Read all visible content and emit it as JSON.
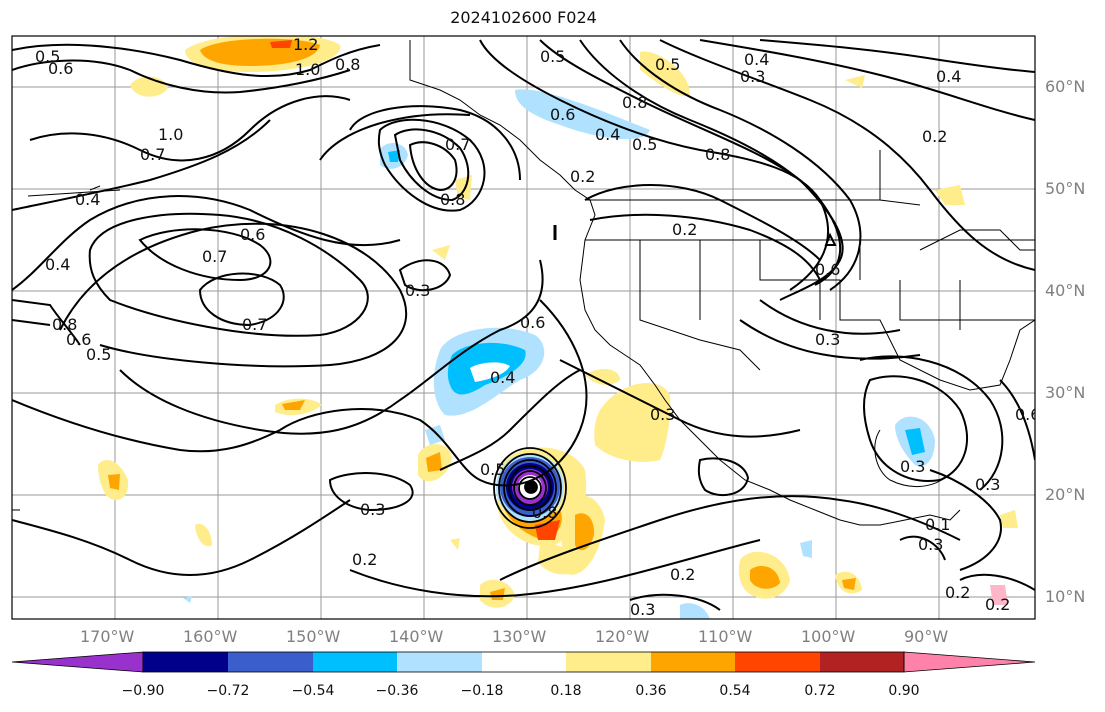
{
  "title": "2024102600 F024",
  "lat_labels": [
    "60°N",
    "50°N",
    "40°N",
    "30°N",
    "20°N",
    "10°N"
  ],
  "lon_labels": [
    "170°W",
    "160°W",
    "150°W",
    "140°W",
    "130°W",
    "120°W",
    "110°W",
    "100°W",
    "90°W"
  ],
  "colorbar": {
    "ticks": [
      "−0.90",
      "−0.72",
      "−0.54",
      "−0.36",
      "−0.18",
      "0.18",
      "0.36",
      "0.54",
      "0.72",
      "0.90"
    ],
    "colors": [
      "#9932cc",
      "#00008b",
      "#3a5fcd",
      "#00bfff",
      "#b0e2ff",
      "#ffffff",
      "#ffec8b",
      "#ffa500",
      "#ff4500",
      "#b22222",
      "#ff82ab"
    ]
  },
  "contour_labels": [
    "0.5",
    "0.6",
    "1.2",
    "1.0",
    "0.8",
    "1.0",
    "0.7",
    "0.4",
    "0.7",
    "0.6",
    "0.7",
    "0.8",
    "0.7",
    "0.4",
    "0.3",
    "0.8",
    "0.6",
    "0.5",
    "0.5",
    "0.4",
    "0.5",
    "0.6",
    "0.4",
    "0.3",
    "0.2",
    "0.2",
    "0.8",
    "0.8",
    "0.4",
    "0.5",
    "0.8",
    "0.4",
    "0.6",
    "0.2",
    "0.6",
    "0.3",
    "0.3",
    "0.3",
    "0.2",
    "0.2",
    "0.3",
    "0.3",
    "0.5",
    "0.3",
    "0.2",
    "0.6",
    "0.3",
    "0.1",
    "0.2"
  ]
}
